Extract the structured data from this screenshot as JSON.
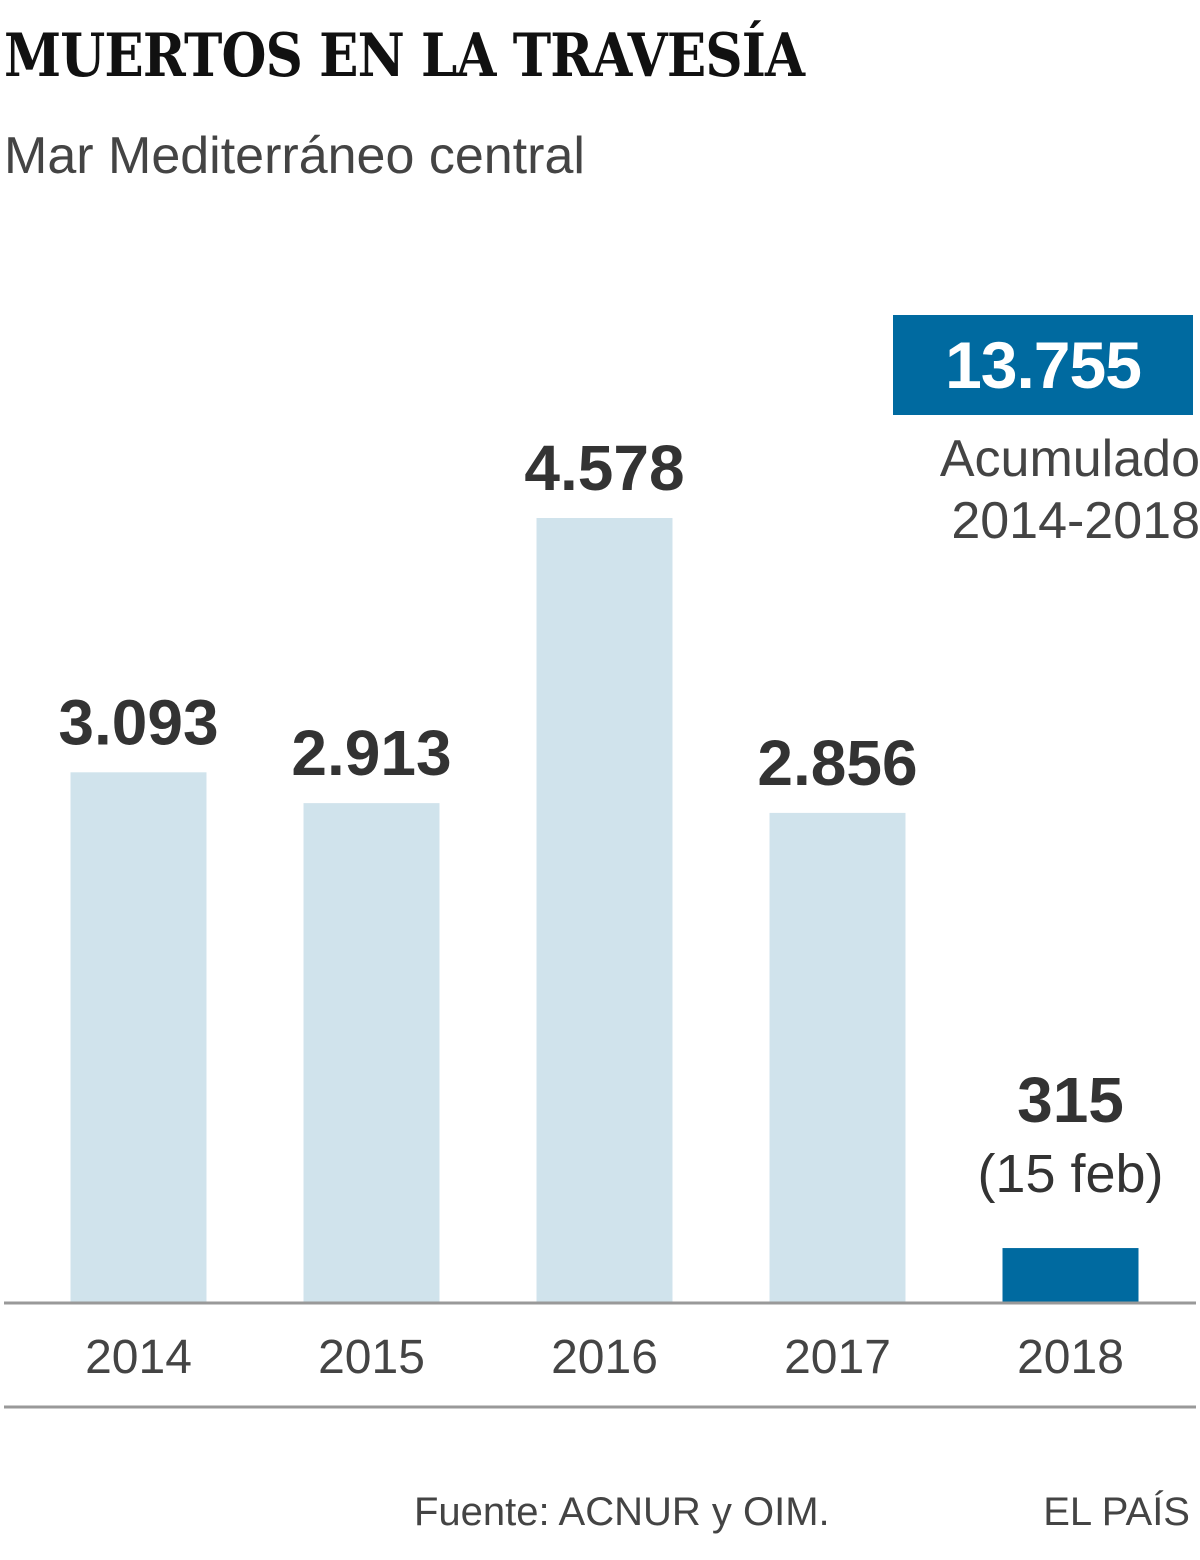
{
  "header": {
    "title": "MUERTOS EN LA TRAVESÍA",
    "subtitle": "Mar Mediterráneo central"
  },
  "total": {
    "value": "13.755",
    "label_line1": "Acumulado",
    "label_line2": "2014-2018"
  },
  "footer": {
    "source": "Fuente: ACNUR y OIM.",
    "brand": "EL PAÍS"
  },
  "colors": {
    "bar": "#d0e3ec",
    "highlight": "#006aa0",
    "label": "#333333",
    "axis": "#999999",
    "tick_text": "#444444"
  },
  "chart_data": {
    "type": "bar",
    "title": "MUERTOS EN LA TRAVESÍA",
    "subtitle": "Mar Mediterráneo central",
    "categories": [
      "2014",
      "2015",
      "2016",
      "2017",
      "2018"
    ],
    "values": [
      3093,
      2913,
      4578,
      2856,
      315
    ],
    "value_labels": [
      "3.093",
      "2.913",
      "4.578",
      "2.856",
      "315"
    ],
    "value_notes": [
      "",
      "",
      "",
      "",
      "(15 feb)"
    ],
    "highlight_index": 4,
    "ylim": [
      0,
      4578
    ],
    "grid": false,
    "xlabel": "",
    "ylabel": ""
  }
}
